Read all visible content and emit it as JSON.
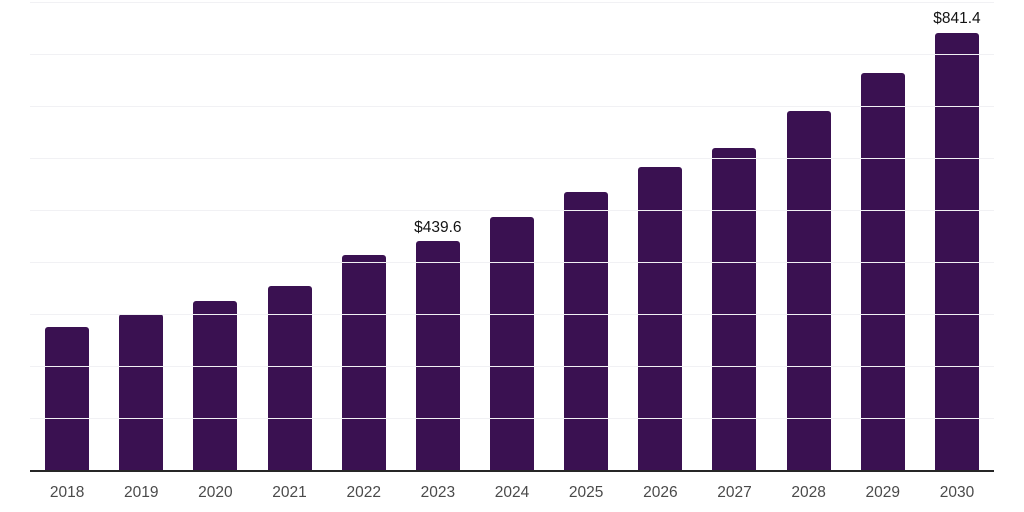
{
  "chart_data": {
    "type": "bar",
    "title": "",
    "xlabel": "",
    "ylabel": "",
    "categories": [
      "2018",
      "2019",
      "2020",
      "2021",
      "2022",
      "2023",
      "2024",
      "2025",
      "2026",
      "2027",
      "2028",
      "2029",
      "2030"
    ],
    "values": [
      276,
      300,
      325,
      354,
      414,
      439.6,
      486,
      534,
      582,
      619,
      690,
      764,
      841.4
    ],
    "value_labels": [
      "",
      "",
      "",
      "",
      "",
      "$439.6",
      "",
      "",
      "",
      "",
      "",
      "",
      "$841.4"
    ],
    "ylim": [
      0,
      900
    ],
    "gridline_step": 100,
    "y_tick_labels_visible": false,
    "legend": "none",
    "grid": "horizontal",
    "colors": {
      "bar": "#3a1151",
      "gridline": "#f1f1f4",
      "axis_line": "#262626",
      "x_tick_label": "#4a4a4a",
      "value_label": "#131313",
      "background": "#ffffff"
    }
  }
}
